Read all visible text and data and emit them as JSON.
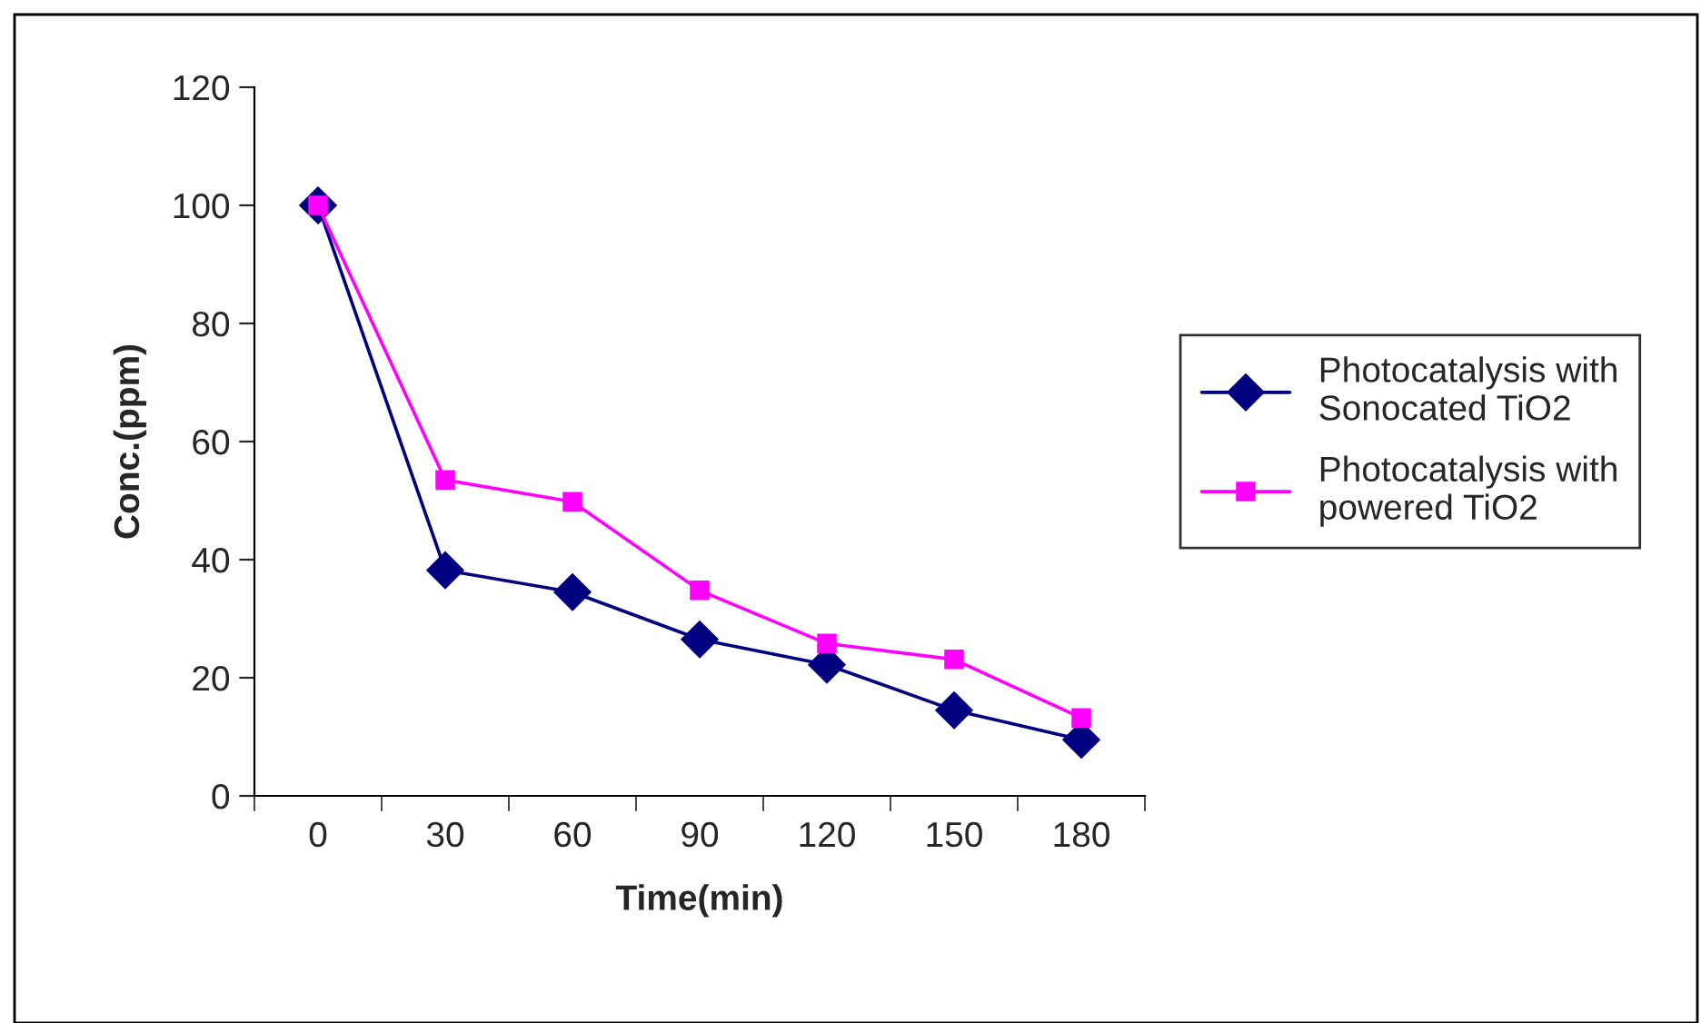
{
  "chart_data": {
    "type": "line",
    "xlabel": "Time(min)",
    "ylabel": "Conc.(ppm)",
    "categories": [
      "0",
      "30",
      "60",
      "90",
      "120",
      "150",
      "180"
    ],
    "series": [
      {
        "name": "Photocatalysis with\nSonocated TiO2",
        "color": "#000080",
        "marker": "diamond",
        "values": [
          100,
          38.2,
          34.5,
          26.5,
          22.2,
          14.5,
          9.5
        ]
      },
      {
        "name": "Photocatalysis with\npowered TiO2",
        "color": "#ff00ff",
        "marker": "square",
        "values": [
          100,
          53.5,
          49.8,
          34.8,
          25.8,
          23.1,
          13.2
        ]
      }
    ],
    "ylim": [
      0,
      120
    ],
    "yticks": [
      0,
      20,
      40,
      60,
      80,
      100,
      120
    ],
    "grid": false,
    "legend": "right",
    "line_style": "solid"
  }
}
